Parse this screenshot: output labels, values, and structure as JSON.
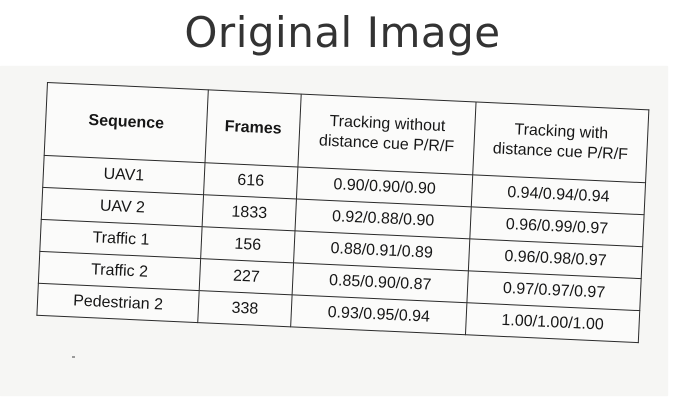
{
  "banner": {
    "title": "Original Image"
  },
  "table": {
    "headers": {
      "sequence": "Sequence",
      "frames": "Frames",
      "without_line1": "Tracking without",
      "without_line2": "distance cue P/R/F",
      "with_line1": "Tracking with",
      "with_line2": "distance cue P/R/F"
    },
    "rows": [
      {
        "sequence": "UAV1",
        "frames": "616",
        "without": "0.90/0.90/0.90",
        "with": "0.94/0.94/0.94"
      },
      {
        "sequence": "UAV 2",
        "frames": "1833",
        "without": "0.92/0.88/0.90",
        "with": "0.96/0.99/0.97"
      },
      {
        "sequence": "Traffic 1",
        "frames": "156",
        "without": "0.88/0.91/0.89",
        "with": "0.96/0.98/0.97"
      },
      {
        "sequence": "Traffic 2",
        "frames": "227",
        "without": "0.85/0.90/0.87",
        "with": "0.97/0.97/0.97"
      },
      {
        "sequence": "Pedestrian 2",
        "frames": "338",
        "without": "0.93/0.95/0.94",
        "with": "1.00/1.00/1.00"
      }
    ]
  }
}
